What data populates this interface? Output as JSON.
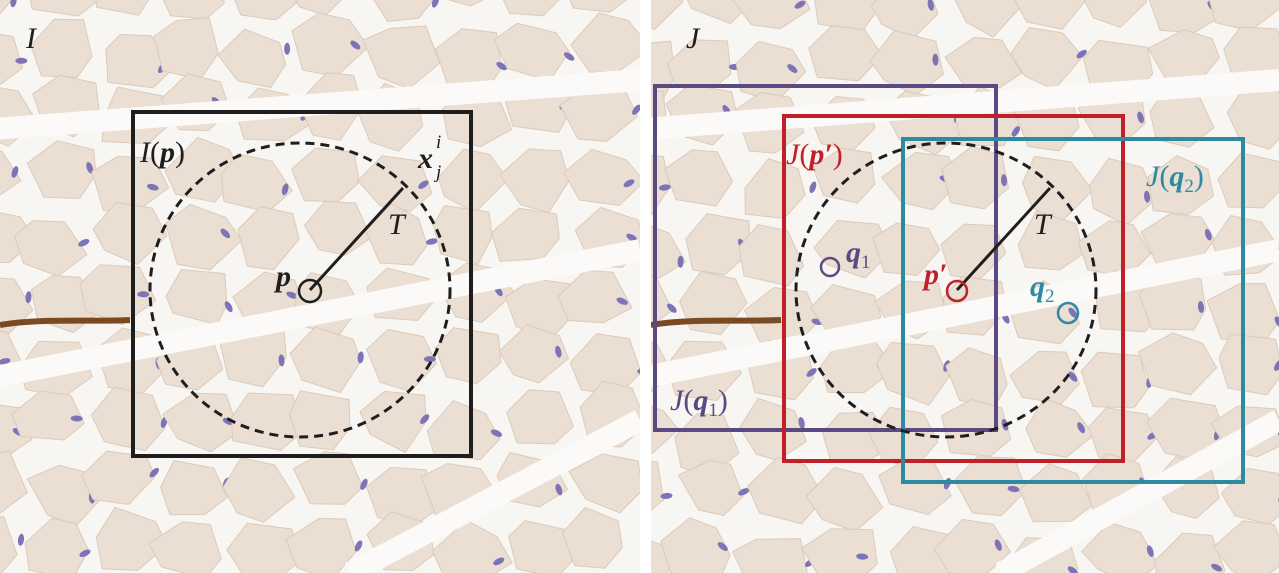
{
  "panels": [
    {
      "image_label": "I",
      "window_label": [
        "I",
        "(",
        "p",
        ")"
      ],
      "patch_label": [
        "x",
        "i",
        "j"
      ],
      "radius_label": "T",
      "point_label": "p"
    },
    {
      "image_label": "J",
      "window_p_label": [
        "J",
        "(",
        "p",
        "′",
        ")"
      ],
      "window_q1_label": [
        "J",
        "(",
        "q",
        "1",
        ")"
      ],
      "window_q2_label": [
        "J",
        "(",
        "q",
        "2",
        ")"
      ],
      "q1_label": [
        "q",
        "1"
      ],
      "p_label": [
        "p",
        "′"
      ],
      "q2_label": [
        "q",
        "2"
      ],
      "radius_label": "T"
    }
  ]
}
